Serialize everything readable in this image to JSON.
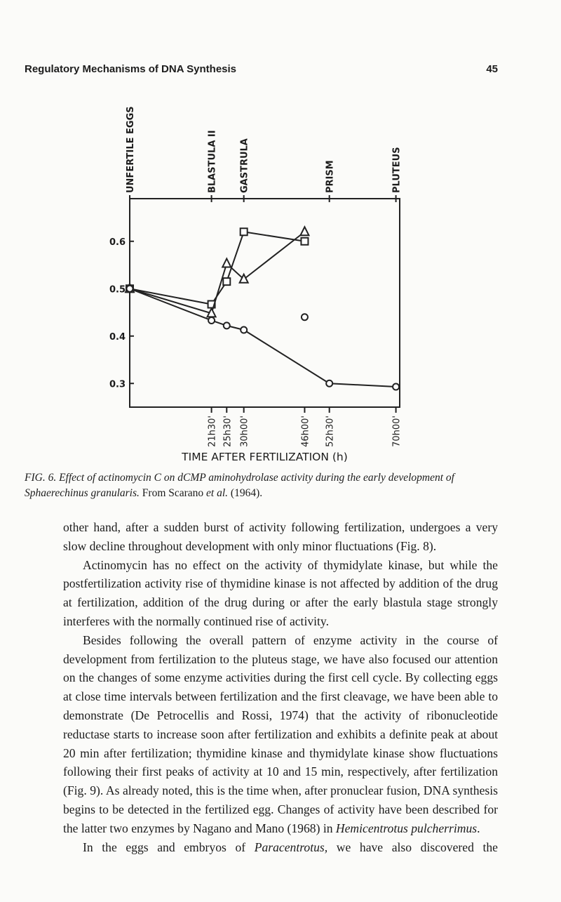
{
  "header": {
    "title": "Regulatory Mechanisms of DNA Synthesis",
    "page": "45"
  },
  "chart_data": {
    "type": "line",
    "xlabel": "TIME AFTER FERTILIZATION (h)",
    "xlim": [
      0,
      71
    ],
    "ylim": [
      0.25,
      0.69
    ],
    "xticks": [
      {
        "value": 21.5,
        "label": "21h30'"
      },
      {
        "value": 25.5,
        "label": "25h30'"
      },
      {
        "value": 30,
        "label": "30h00'"
      },
      {
        "value": 46,
        "label": "46h00'"
      },
      {
        "value": 52.5,
        "label": "52h30'"
      },
      {
        "value": 70,
        "label": "70h00'"
      }
    ],
    "yticks": [
      0.3,
      0.4,
      0.5,
      0.6
    ],
    "stages": [
      {
        "text": "UNFERTILE EGGS",
        "x": 0
      },
      {
        "text": "BLASTULA II",
        "x": 21.5
      },
      {
        "text": "GASTRULA",
        "x": 30
      },
      {
        "text": "PRISM",
        "x": 52.5
      },
      {
        "text": "PLUTEUS",
        "x": 70
      }
    ],
    "series": [
      {
        "marker": "square",
        "color": "#222222",
        "x": [
          0,
          21.5,
          25.5,
          30,
          46
        ],
        "values": [
          0.5,
          0.467,
          0.515,
          0.62,
          0.6
        ]
      },
      {
        "marker": "triangle",
        "color": "#222222",
        "x": [
          0,
          21.5,
          25.5,
          30,
          46
        ],
        "values": [
          0.5,
          0.448,
          0.553,
          0.52,
          0.62
        ]
      },
      {
        "marker": "circle",
        "color": "#222222",
        "x": [
          0,
          21.5,
          25.5,
          30,
          52.5,
          70
        ],
        "values": [
          0.5,
          0.433,
          0.422,
          0.413,
          0.3,
          0.293
        ]
      },
      {
        "marker": "circle",
        "color": "#222222",
        "line": false,
        "x": [
          46
        ],
        "values": [
          0.44
        ]
      }
    ]
  },
  "caption": [
    "FIG. 6. Effect of actinomycin C on dCMP aminohydrolase activity during the early development of Sphaerechinus granularis.",
    " From Scarano ",
    "et al.",
    " (1964)."
  ],
  "paragraphs": [
    [
      "other hand, after a sudden burst of activity following fertilization, undergoes a very slow decline throughout development with only minor fluctuations (Fig. 8)."
    ],
    [
      "Actinomycin has no effect on the activity of thymidylate kinase, but while the postfertilization activity rise of thymidine kinase is not affected by addition of the drug at fertilization, addition of the drug during or after the early blastula stage strongly interferes with the normally continued rise of activity."
    ],
    [
      "Besides following the overall pattern of enzyme activity in the course of development from fertilization to the pluteus stage, we have also focused our attention on the changes of some enzyme activities during the first cell cycle. By collecting eggs at close time intervals between fertilization and the first cleavage, we have been able to demonstrate (De Petrocellis and Rossi, 1974) that the activity of ribonucleotide reductase starts to increase soon after fertilization and exhibits a definite peak at about 20 min after fertilization; thymidine kinase and thymidylate kinase show fluctuations following their first peaks of activity at 10 and 15 min, respectively, after fertilization (Fig. 9). As already noted, this is the time when, after pronuclear fusion, DNA synthesis begins to be detected in the fertilized egg. Changes of activity have been described for the latter two enzymes by Nagano and Mano (1968) in ",
      "Hemicentrotus pulcherrimus",
      "."
    ],
    [
      "In the eggs and embryos of ",
      "Paracentrotus,",
      " we have also discovered the"
    ]
  ]
}
